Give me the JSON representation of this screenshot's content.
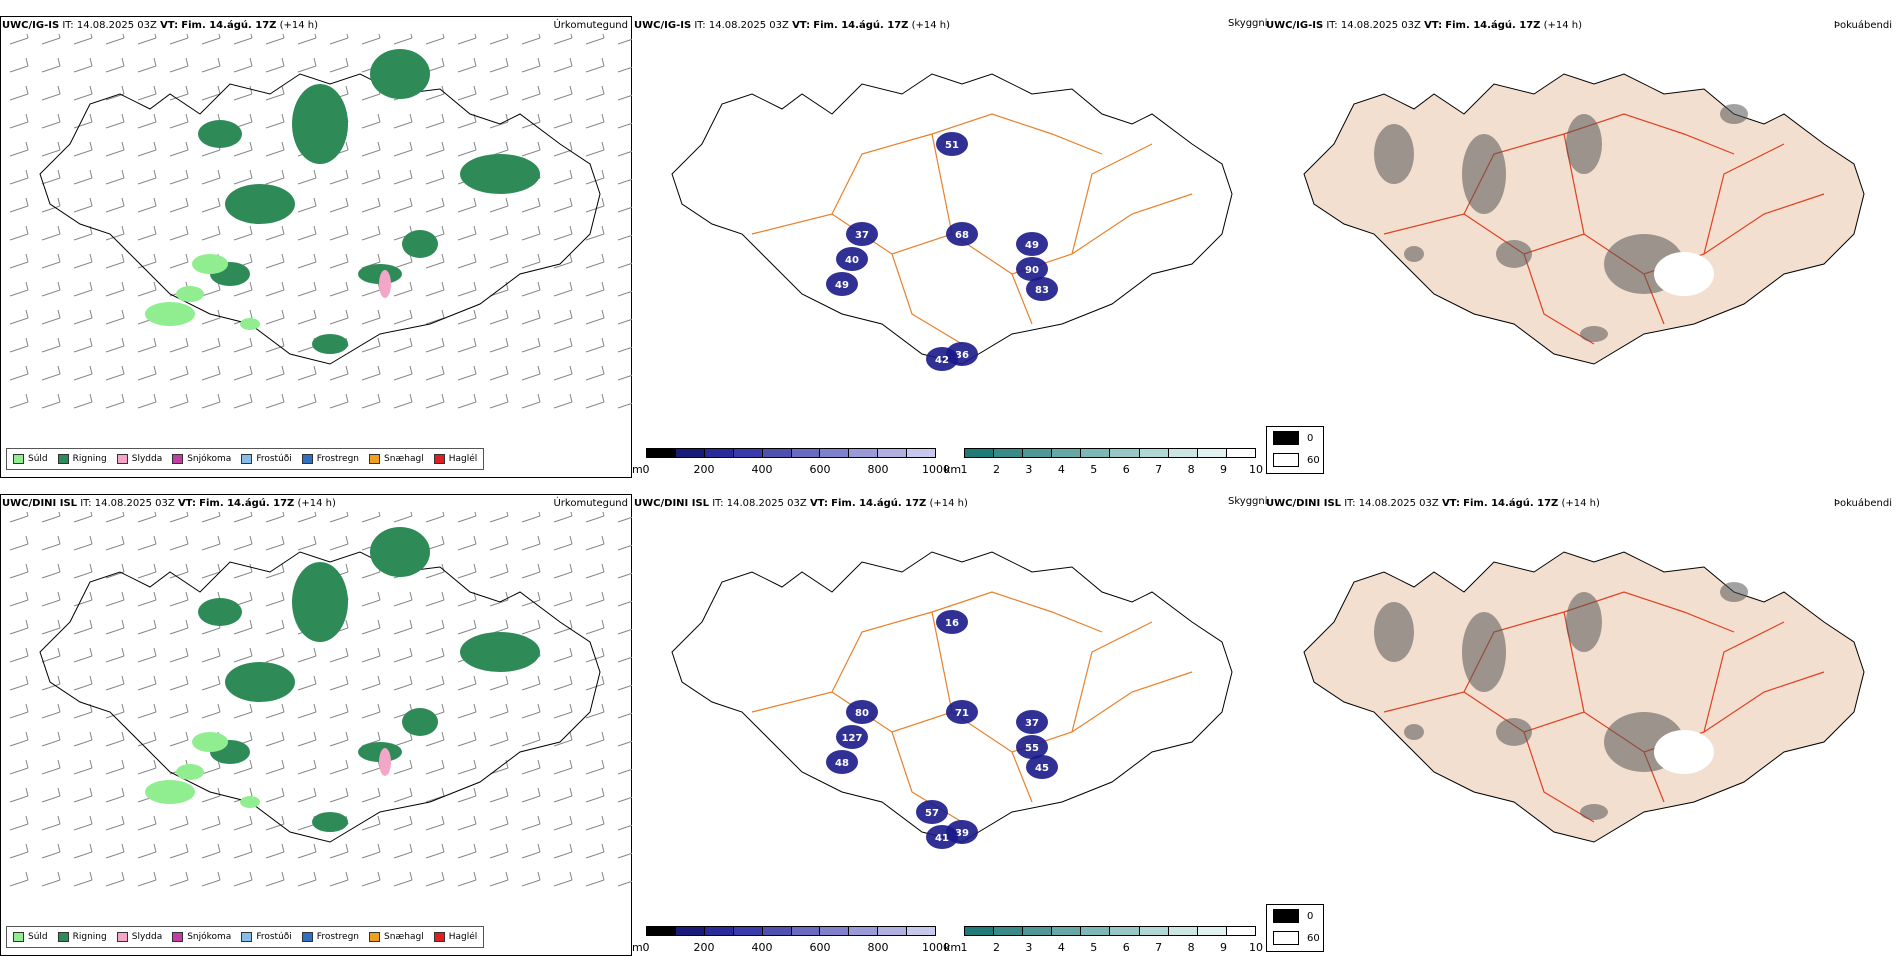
{
  "panels": [
    {
      "model": "UWC/IG-IS",
      "it_label": "IT:",
      "it_value": "14.08.2025 03Z",
      "vt_label": "VT:",
      "vt_value": "Fim. 14.ágú. 17Z",
      "lead": "(+14 h)",
      "precip_title": "Úrkomutegund",
      "cloud_title": "Skyggni",
      "fog_title": "Þokuábendi",
      "visibility_values": [
        "37",
        "40",
        "49",
        "68",
        "49",
        "90",
        "83",
        "51",
        "36",
        "42"
      ]
    },
    {
      "model": "UWC/DINI ISL",
      "it_label": "IT:",
      "it_value": "14.08.2025 03Z",
      "vt_label": "VT:",
      "vt_value": "Fim. 14.ágú. 17Z",
      "lead": "(+14 h)",
      "precip_title": "Úrkomutegund",
      "cloud_title": "Skyggni",
      "fog_title": "Þokuábendi",
      "visibility_values": [
        "80",
        "127",
        "48",
        "71",
        "37",
        "55",
        "45",
        "16",
        "39",
        "41",
        "57"
      ]
    }
  ],
  "precip_legend": [
    {
      "label": "Súld",
      "color": "#90ee90"
    },
    {
      "label": "Rigning",
      "color": "#2e8b57"
    },
    {
      "label": "Slydda",
      "color": "#f4a6c8"
    },
    {
      "label": "Snjókoma",
      "color": "#c040a0"
    },
    {
      "label": "Frostúði",
      "color": "#87bde8"
    },
    {
      "label": "Frostregn",
      "color": "#3070c0"
    },
    {
      "label": "Snæhagl",
      "color": "#f0a020"
    },
    {
      "label": "Haglél",
      "color": "#e02020"
    }
  ],
  "cloudbase_bar": {
    "unit": "m",
    "ticks": [
      "0",
      "200",
      "400",
      "600",
      "800",
      "1000"
    ],
    "colors": [
      "#000000",
      "#1a1a7a",
      "#2a2a9a",
      "#3a3aaa",
      "#5050b0",
      "#6a6ac0",
      "#8080cc",
      "#9a9ad8",
      "#b0b0e0",
      "#c8c8ec"
    ]
  },
  "visibility_bar": {
    "unit": "km",
    "ticks": [
      "1",
      "2",
      "3",
      "4",
      "5",
      "6",
      "7",
      "8",
      "9",
      "10"
    ],
    "colors": [
      "#1f7a78",
      "#3a8a88",
      "#4f9896",
      "#66a8a6",
      "#7eb8b6",
      "#98c8c6",
      "#b2d8d6",
      "#cce6e4",
      "#e2f2f0",
      "#ffffff"
    ]
  },
  "fog_legend": [
    {
      "label": "0",
      "color": "#000000"
    },
    {
      "label": "60",
      "color": "#ffffff"
    }
  ],
  "colors": {
    "land_fog": "#f2dfcf",
    "roads_orange": "#e8802a",
    "roads_red": "#e04020",
    "rivers": "#8a9cf0",
    "rain_green": "#2e8b57",
    "drizzle_green": "#90ee90",
    "navy": "#1a1a8a",
    "teal": "#6aaaa8"
  }
}
